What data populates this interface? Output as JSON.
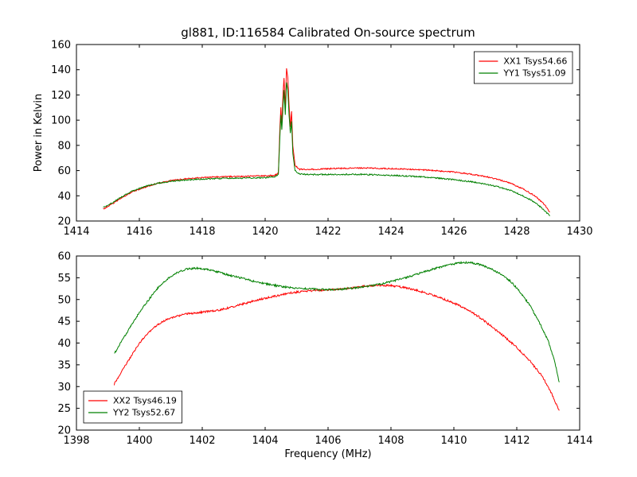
{
  "figure": {
    "title": "gl881, ID:116584 Calibrated On-source spectrum",
    "xlabel": "Frequency (MHz)",
    "ylabel": "Power in Kelvin",
    "colors": {
      "xx": "#ff0000",
      "yy": "#008000",
      "axes": "#000000",
      "background": "#ffffff"
    }
  },
  "chart_data": [
    {
      "id": "top",
      "type": "line",
      "title": "gl881, ID:116584 Calibrated On-source spectrum",
      "xlabel": "",
      "ylabel": "Power in Kelvin",
      "xlim": [
        1414,
        1430
      ],
      "ylim": [
        20,
        160
      ],
      "xticks": [
        1414,
        1416,
        1418,
        1420,
        1422,
        1424,
        1426,
        1428,
        1430
      ],
      "yticks": [
        20,
        40,
        60,
        80,
        100,
        120,
        140,
        160
      ],
      "grid": false,
      "legend": {
        "position": "top-right",
        "entries": [
          {
            "label": "XX1 Tsys54.66",
            "color": "#ff0000"
          },
          {
            "label": "YY1 Tsys51.09",
            "color": "#008000"
          }
        ]
      },
      "series": [
        {
          "name": "XX1 Tsys54.66",
          "color": "#ff0000",
          "noise": 0.5,
          "points": [
            [
              1414.85,
              29.5
            ],
            [
              1415.1,
              33
            ],
            [
              1415.4,
              38
            ],
            [
              1415.8,
              43.5
            ],
            [
              1416.2,
              47
            ],
            [
              1416.6,
              50
            ],
            [
              1417,
              52
            ],
            [
              1417.5,
              53.5
            ],
            [
              1418,
              54.5
            ],
            [
              1418.5,
              55
            ],
            [
              1419,
              55.3
            ],
            [
              1419.5,
              55.5
            ],
            [
              1420,
              55.8
            ],
            [
              1420.3,
              56.2
            ],
            [
              1420.42,
              58
            ],
            [
              1420.47,
              95
            ],
            [
              1420.5,
              110
            ],
            [
              1420.53,
              96
            ],
            [
              1420.57,
              122
            ],
            [
              1420.6,
              133
            ],
            [
              1420.64,
              110
            ],
            [
              1420.68,
              141
            ],
            [
              1420.72,
              134
            ],
            [
              1420.76,
              112
            ],
            [
              1420.8,
              95
            ],
            [
              1420.84,
              107
            ],
            [
              1420.88,
              80
            ],
            [
              1420.95,
              64
            ],
            [
              1421.1,
              61
            ],
            [
              1421.5,
              61
            ],
            [
              1422,
              61.5
            ],
            [
              1422.5,
              61.8
            ],
            [
              1423,
              62
            ],
            [
              1423.5,
              61.9
            ],
            [
              1424,
              61.5
            ],
            [
              1424.5,
              61.2
            ],
            [
              1425,
              60.6
            ],
            [
              1425.5,
              59.8
            ],
            [
              1426,
              58.8
            ],
            [
              1426.5,
              57.3
            ],
            [
              1427,
              55.3
            ],
            [
              1427.4,
              53
            ],
            [
              1427.8,
              50
            ],
            [
              1428.2,
              45.5
            ],
            [
              1428.6,
              39.5
            ],
            [
              1428.9,
              32.5
            ],
            [
              1429.05,
              27
            ]
          ]
        },
        {
          "name": "YY1 Tsys51.09",
          "color": "#008000",
          "noise": 0.5,
          "points": [
            [
              1414.85,
              30.5
            ],
            [
              1415.1,
              33.8
            ],
            [
              1415.4,
              38.6
            ],
            [
              1415.8,
              44
            ],
            [
              1416.2,
              47.5
            ],
            [
              1416.6,
              50
            ],
            [
              1417,
              51.5
            ],
            [
              1417.5,
              52.6
            ],
            [
              1418,
              53.3
            ],
            [
              1418.5,
              53.7
            ],
            [
              1419,
              53.9
            ],
            [
              1419.5,
              54.1
            ],
            [
              1420,
              54.4
            ],
            [
              1420.3,
              55
            ],
            [
              1420.42,
              57
            ],
            [
              1420.47,
              88
            ],
            [
              1420.5,
              104
            ],
            [
              1420.53,
              92
            ],
            [
              1420.57,
              112
            ],
            [
              1420.6,
              124
            ],
            [
              1420.64,
              104
            ],
            [
              1420.68,
              130
            ],
            [
              1420.72,
              124
            ],
            [
              1420.76,
              104
            ],
            [
              1420.8,
              90
            ],
            [
              1420.84,
              99
            ],
            [
              1420.88,
              74
            ],
            [
              1420.95,
              60
            ],
            [
              1421.1,
              57.2
            ],
            [
              1421.5,
              56.8
            ],
            [
              1422,
              56.9
            ],
            [
              1422.5,
              57
            ],
            [
              1423,
              57
            ],
            [
              1423.5,
              56.7
            ],
            [
              1424,
              56.2
            ],
            [
              1424.5,
              55.7
            ],
            [
              1425,
              55
            ],
            [
              1425.5,
              54
            ],
            [
              1426,
              52.8
            ],
            [
              1426.5,
              51.3
            ],
            [
              1427,
              49.3
            ],
            [
              1427.4,
              47.2
            ],
            [
              1427.8,
              44.3
            ],
            [
              1428.2,
              40
            ],
            [
              1428.6,
              34.5
            ],
            [
              1428.9,
              28
            ],
            [
              1429.05,
              24
            ]
          ]
        }
      ]
    },
    {
      "id": "bottom",
      "type": "line",
      "title": "",
      "xlabel": "Frequency (MHz)",
      "ylabel": "",
      "xlim": [
        1398,
        1414
      ],
      "ylim": [
        20,
        60
      ],
      "xticks": [
        1398,
        1400,
        1402,
        1404,
        1406,
        1408,
        1410,
        1412,
        1414
      ],
      "yticks": [
        20,
        25,
        30,
        35,
        40,
        45,
        50,
        55,
        60
      ],
      "grid": false,
      "legend": {
        "position": "bottom-left",
        "entries": [
          {
            "label": "XX2 Tsys46.19",
            "color": "#ff0000"
          },
          {
            "label": "YY2 Tsys52.67",
            "color": "#008000"
          }
        ]
      },
      "series": [
        {
          "name": "XX2 Tsys46.19",
          "color": "#ff0000",
          "noise": 0.22,
          "points": [
            [
              1399.2,
              30.5
            ],
            [
              1399.4,
              33
            ],
            [
              1399.7,
              36.5
            ],
            [
              1400,
              40
            ],
            [
              1400.3,
              42.5
            ],
            [
              1400.6,
              44.3
            ],
            [
              1400.9,
              45.5
            ],
            [
              1401.2,
              46.2
            ],
            [
              1401.6,
              46.8
            ],
            [
              1402,
              47.1
            ],
            [
              1402.4,
              47.4
            ],
            [
              1402.8,
              48
            ],
            [
              1403.2,
              48.8
            ],
            [
              1403.6,
              49.6
            ],
            [
              1404,
              50.3
            ],
            [
              1404.4,
              50.9
            ],
            [
              1404.8,
              51.5
            ],
            [
              1405.2,
              51.9
            ],
            [
              1405.6,
              52.1
            ],
            [
              1406,
              52.2
            ],
            [
              1406.4,
              52.4
            ],
            [
              1406.8,
              52.7
            ],
            [
              1407.2,
              53.1
            ],
            [
              1407.6,
              53.3
            ],
            [
              1408,
              53.2
            ],
            [
              1408.4,
              52.8
            ],
            [
              1408.8,
              52.2
            ],
            [
              1409.2,
              51.3
            ],
            [
              1409.6,
              50.3
            ],
            [
              1410,
              49.2
            ],
            [
              1410.4,
              47.8
            ],
            [
              1410.8,
              46
            ],
            [
              1411.2,
              43.8
            ],
            [
              1411.6,
              41.5
            ],
            [
              1412,
              39
            ],
            [
              1412.4,
              36
            ],
            [
              1412.8,
              32.5
            ],
            [
              1413.1,
              28.5
            ],
            [
              1413.35,
              24.5
            ]
          ]
        },
        {
          "name": "YY2 Tsys52.67",
          "color": "#008000",
          "noise": 0.22,
          "points": [
            [
              1399.2,
              37.5
            ],
            [
              1399.4,
              40
            ],
            [
              1399.7,
              43.5
            ],
            [
              1400,
              47
            ],
            [
              1400.3,
              50
            ],
            [
              1400.6,
              52.8
            ],
            [
              1400.9,
              54.8
            ],
            [
              1401.2,
              56.2
            ],
            [
              1401.5,
              57
            ],
            [
              1401.8,
              57.2
            ],
            [
              1402.1,
              57
            ],
            [
              1402.5,
              56.3
            ],
            [
              1402.9,
              55.5
            ],
            [
              1403.3,
              54.8
            ],
            [
              1403.7,
              54.1
            ],
            [
              1404.1,
              53.5
            ],
            [
              1404.5,
              53
            ],
            [
              1404.9,
              52.7
            ],
            [
              1405.3,
              52.5
            ],
            [
              1405.7,
              52.3
            ],
            [
              1406.1,
              52.3
            ],
            [
              1406.5,
              52.4
            ],
            [
              1406.9,
              52.7
            ],
            [
              1407.3,
              53.1
            ],
            [
              1407.7,
              53.6
            ],
            [
              1408.1,
              54.3
            ],
            [
              1408.5,
              55.1
            ],
            [
              1408.9,
              56
            ],
            [
              1409.3,
              56.9
            ],
            [
              1409.7,
              57.7
            ],
            [
              1410,
              58.2
            ],
            [
              1410.3,
              58.5
            ],
            [
              1410.6,
              58.4
            ],
            [
              1410.9,
              57.9
            ],
            [
              1411.2,
              57
            ],
            [
              1411.5,
              55.8
            ],
            [
              1411.8,
              54.2
            ],
            [
              1412.1,
              51.8
            ],
            [
              1412.4,
              48.8
            ],
            [
              1412.7,
              45
            ],
            [
              1413,
              40.5
            ],
            [
              1413.2,
              36
            ],
            [
              1413.35,
              31
            ]
          ]
        }
      ]
    }
  ]
}
